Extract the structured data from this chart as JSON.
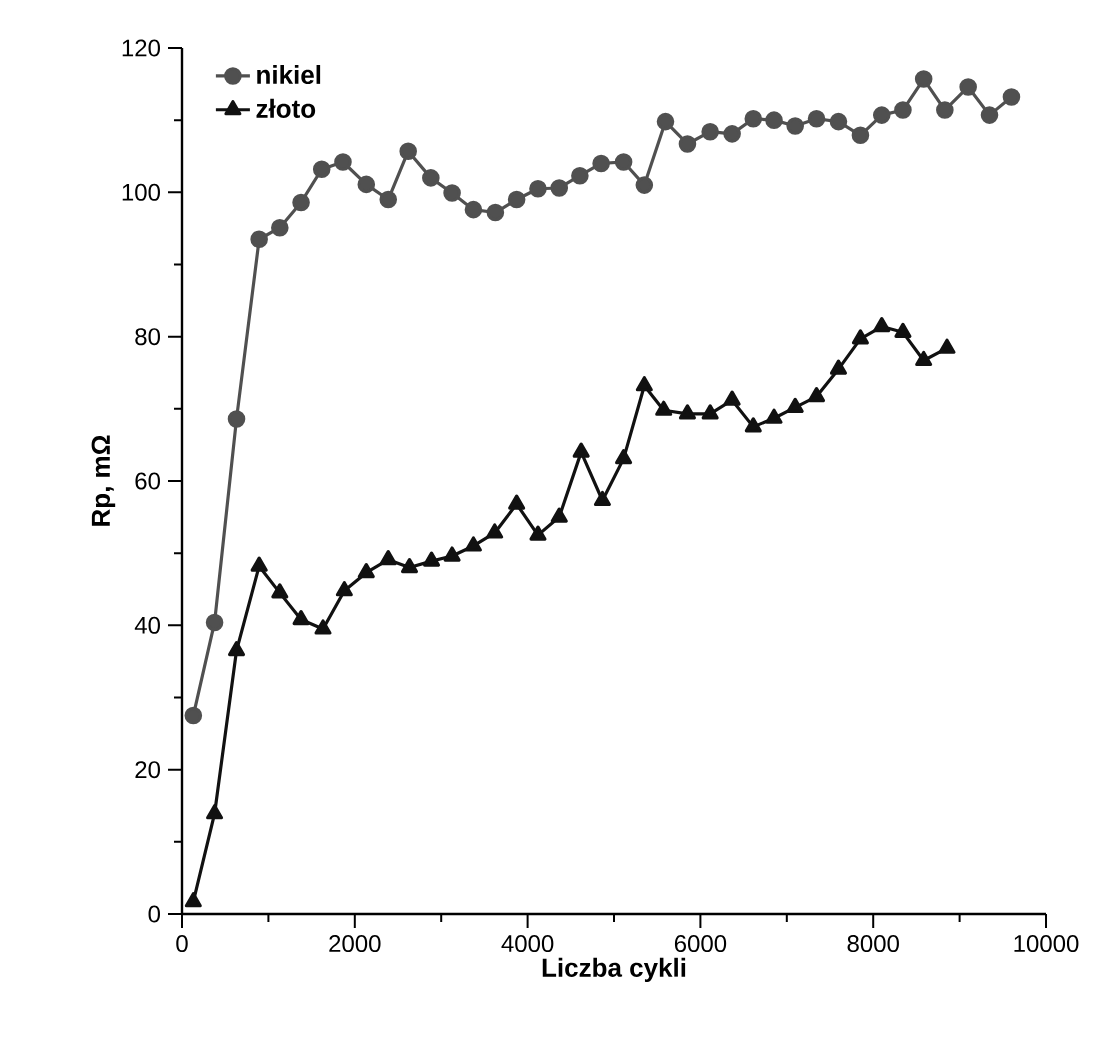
{
  "chart_data": {
    "type": "line",
    "xlabel": "Liczba cykli",
    "ylabel": "Rp, mΩ",
    "xlim": [
      0,
      10000
    ],
    "xticks": [
      0,
      2000,
      4000,
      6000,
      8000,
      10000
    ],
    "ylim": [
      0,
      120
    ],
    "yticks": [
      0,
      20,
      40,
      60,
      80,
      100,
      120
    ],
    "legend": "top left",
    "line_style": "solid",
    "series": [
      {
        "name": "nikiel",
        "color": "#505050",
        "marker": "circle",
        "x": [
          131,
          377,
          631,
          893,
          1132,
          1378,
          1617,
          1863,
          2133,
          2387,
          2618,
          2880,
          3126,
          3373,
          3627,
          3873,
          4120,
          4366,
          4605,
          4851,
          5111,
          5351,
          5596,
          5850,
          6113,
          6367,
          6612,
          6852,
          7097,
          7344,
          7598,
          7852,
          8099,
          8344,
          8584,
          8829,
          9099,
          9346,
          9600
        ],
        "values": [
          27.5,
          40.4,
          68.6,
          93.5,
          95.1,
          98.6,
          103.2,
          104.2,
          101.1,
          99,
          105.7,
          102,
          99.9,
          97.6,
          97.2,
          99,
          100.5,
          100.6,
          102.3,
          104,
          104.2,
          101,
          109.8,
          106.7,
          108.4,
          108.1,
          110.2,
          110,
          109.2,
          110.2,
          109.8,
          107.9,
          110.7,
          111.4,
          115.7,
          111.4,
          114.6,
          110.7,
          113.2
        ]
      },
      {
        "name": "złoto",
        "color": "#111111",
        "marker": "triangle",
        "x": [
          131,
          377,
          631,
          893,
          1132,
          1378,
          1632,
          1879,
          2133,
          2387,
          2633,
          2888,
          3126,
          3373,
          3619,
          3873,
          4120,
          4366,
          4620,
          4866,
          5111,
          5351,
          5575,
          5850,
          6113,
          6367,
          6612,
          6852,
          7097,
          7344,
          7598,
          7852,
          8099,
          8344,
          8584,
          8854
        ],
        "values": [
          1.7,
          13.9,
          36.5,
          48.2,
          44.5,
          40.8,
          39.5,
          44.8,
          47.3,
          49.1,
          48,
          48.9,
          49.6,
          51,
          52.8,
          56.8,
          52.5,
          55,
          64,
          57.3,
          63.1,
          73.2,
          69.8,
          69.3,
          69.3,
          71.2,
          67.5,
          68.7,
          70.2,
          71.7,
          75.5,
          79.7,
          81.4,
          80.6,
          76.7,
          78.4
        ]
      }
    ]
  }
}
